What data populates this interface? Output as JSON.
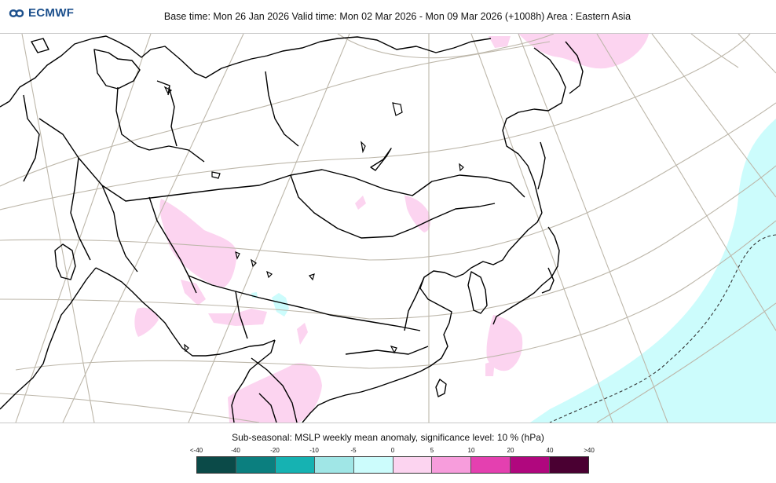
{
  "header": {
    "logo_text": "ECMWF",
    "logo_icon": "ecmwf-swirl-icon",
    "title": "Base time: Mon 26 Jan 2026 Valid time: Mon 02 Mar 2026 - Mon 09 Mar 2026 (+1008h) Area : Eastern Asia"
  },
  "legend": {
    "title": "Sub-seasonal: MSLP weekly mean anomaly, significance level: 10 % (hPa)",
    "labels": [
      "<-40",
      "-40",
      "-20",
      "-10",
      "-5",
      "0",
      "5",
      "10",
      "20",
      "40",
      ">40"
    ],
    "colors": [
      "#0b4a48",
      "#0b7f7f",
      "#16b2b2",
      "#a0e6e6",
      "#ccfcfc",
      "#fcd4f0",
      "#f79ddc",
      "#e440b0",
      "#b0077e",
      "#4a0032"
    ]
  },
  "map": {
    "area": "Eastern Asia",
    "land_color": "#ffffff",
    "coast_color": "#000000",
    "graticule_color": "#bdb7aa"
  }
}
